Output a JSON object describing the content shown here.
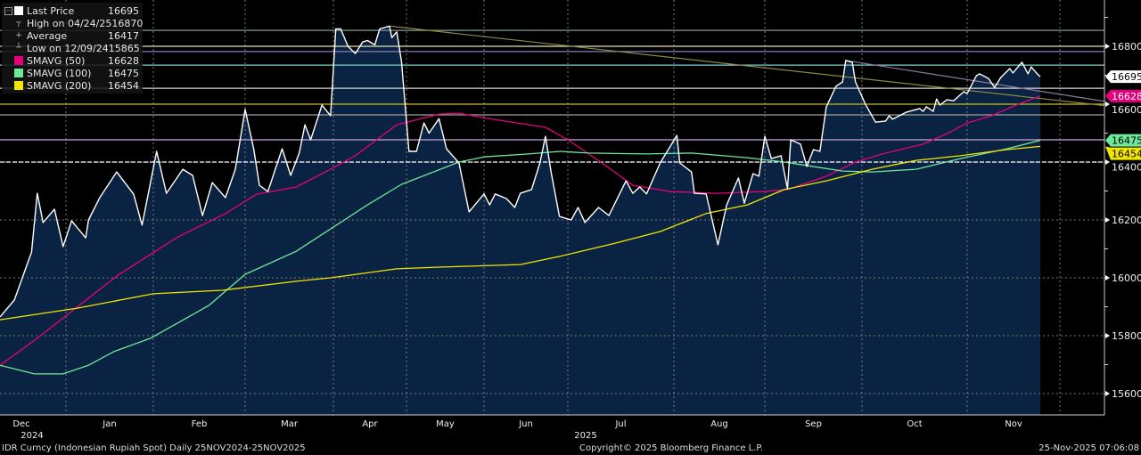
{
  "footer": {
    "security": "IDR Curncy (Indonesian Rupiah Spot) Daily 25NOV2024-25NOV2025",
    "copyright": "Copyright© 2025 Bloomberg Finance L.P.",
    "timestamp": "25-Nov-2025 07:06:08"
  },
  "legend": [
    {
      "name": "Last Price",
      "value": "16695",
      "color": "#ffffff",
      "marker": "square"
    },
    {
      "name": "High on 04/24/25",
      "value": "16870",
      "color": "#aaaaaa",
      "marker": "high-tick"
    },
    {
      "name": "Average",
      "value": "16417",
      "color": "#aaaaaa",
      "marker": "cross"
    },
    {
      "name": "Low on 12/09/24",
      "value": "15865",
      "color": "#aaaaaa",
      "marker": "low-tick"
    },
    {
      "name": "SMAVG (50)",
      "value": "16628",
      "color": "#e6007e",
      "marker": "square"
    },
    {
      "name": "SMAVG (100)",
      "value": "16475",
      "color": "#6ee89a",
      "marker": "square"
    },
    {
      "name": "SMAVG (200)",
      "value": "16454",
      "color": "#f2e600",
      "marker": "square"
    }
  ],
  "chart_data": {
    "type": "area",
    "title": "",
    "xlabel": "",
    "ylabel": "",
    "ylim": [
      15540,
      16960
    ],
    "y_axis_side": "right",
    "y_ticks": [
      15600,
      15800,
      16000,
      16200,
      16400,
      16600,
      16800
    ],
    "x_ticks": [
      {
        "label": "Dec",
        "date": "2024-12-01"
      },
      {
        "label": "Jan",
        "date": "2025-01-01"
      },
      {
        "label": "Feb",
        "date": "2025-02-01"
      },
      {
        "label": "Mar",
        "date": "2025-03-01"
      },
      {
        "label": "Apr",
        "date": "2025-04-01"
      },
      {
        "label": "May",
        "date": "2025-05-01"
      },
      {
        "label": "Jun",
        "date": "2025-06-01"
      },
      {
        "label": "Jul",
        "date": "2025-07-01"
      },
      {
        "label": "Aug",
        "date": "2025-08-01"
      },
      {
        "label": "Sep",
        "date": "2025-09-01"
      },
      {
        "label": "Oct",
        "date": "2025-10-01"
      },
      {
        "label": "Nov",
        "date": "2025-11-01"
      }
    ],
    "year_labels": [
      {
        "label": "2024",
        "date": "2024-12-15"
      },
      {
        "label": "2025",
        "date": "2025-06-28"
      }
    ],
    "grid": true,
    "legend_position": "top-left",
    "series": [
      {
        "name": "Last Price",
        "color": "#ffffff",
        "fill": "#0b2342",
        "points": [
          [
            "2024-12-09",
            15865
          ],
          [
            "2024-12-14",
            15923
          ],
          [
            "2024-12-17",
            16006
          ],
          [
            "2024-12-20",
            16089
          ],
          [
            "2024-12-22",
            16292
          ],
          [
            "2024-12-24",
            16191
          ],
          [
            "2024-12-28",
            16237
          ],
          [
            "2024-12-31",
            16108
          ],
          [
            "2025-01-03",
            16197
          ],
          [
            "2025-01-08",
            16138
          ],
          [
            "2025-01-09",
            16200
          ],
          [
            "2025-01-13",
            16277
          ],
          [
            "2025-01-19",
            16366
          ],
          [
            "2025-01-25",
            16289
          ],
          [
            "2025-01-28",
            16182
          ],
          [
            "2025-02-02",
            16437
          ],
          [
            "2025-02-05",
            16292
          ],
          [
            "2025-02-10",
            16375
          ],
          [
            "2025-02-13",
            16354
          ],
          [
            "2025-02-16",
            16215
          ],
          [
            "2025-02-19",
            16329
          ],
          [
            "2025-02-23",
            16277
          ],
          [
            "2025-02-26",
            16375
          ],
          [
            "2025-03-01",
            16582
          ],
          [
            "2025-03-04",
            16446
          ],
          [
            "2025-03-06",
            16320
          ],
          [
            "2025-03-09",
            16298
          ],
          [
            "2025-03-14",
            16446
          ],
          [
            "2025-03-17",
            16354
          ],
          [
            "2025-03-20",
            16431
          ],
          [
            "2025-03-22",
            16529
          ],
          [
            "2025-03-24",
            16477
          ],
          [
            "2025-03-28",
            16597
          ],
          [
            "2025-03-31",
            16560
          ],
          [
            "2025-04-02",
            16860
          ],
          [
            "2025-04-04",
            16860
          ],
          [
            "2025-04-07",
            16800
          ],
          [
            "2025-04-10",
            16775
          ],
          [
            "2025-04-13",
            16815
          ],
          [
            "2025-04-15",
            16820
          ],
          [
            "2025-04-18",
            16805
          ],
          [
            "2025-04-20",
            16860
          ],
          [
            "2025-04-24",
            16870
          ],
          [
            "2025-04-25",
            16830
          ],
          [
            "2025-04-27",
            16850
          ],
          [
            "2025-04-29",
            16745
          ],
          [
            "2025-05-02",
            16437
          ],
          [
            "2025-05-05",
            16437
          ],
          [
            "2025-05-08",
            16535
          ],
          [
            "2025-05-10",
            16500
          ],
          [
            "2025-05-14",
            16550
          ],
          [
            "2025-05-17",
            16446
          ],
          [
            "2025-05-22",
            16397
          ],
          [
            "2025-05-26",
            16228
          ],
          [
            "2025-06-01",
            16290
          ],
          [
            "2025-06-03",
            16252
          ],
          [
            "2025-06-05",
            16290
          ],
          [
            "2025-06-09",
            16274
          ],
          [
            "2025-06-12",
            16243
          ],
          [
            "2025-06-14",
            16292
          ],
          [
            "2025-06-18",
            16305
          ],
          [
            "2025-06-21",
            16397
          ],
          [
            "2025-06-23",
            16489
          ],
          [
            "2025-06-25",
            16366
          ],
          [
            "2025-06-28",
            16212
          ],
          [
            "2025-07-02",
            16200
          ],
          [
            "2025-07-04",
            16243
          ],
          [
            "2025-07-06",
            16191
          ],
          [
            "2025-07-10",
            16243
          ],
          [
            "2025-07-13",
            16215
          ],
          [
            "2025-07-18",
            16335
          ],
          [
            "2025-07-20",
            16292
          ],
          [
            "2025-07-22",
            16314
          ],
          [
            "2025-07-24",
            16290
          ],
          [
            "2025-07-28",
            16397
          ],
          [
            "2025-08-02",
            16492
          ],
          [
            "2025-08-03",
            16397
          ],
          [
            "2025-08-07",
            16366
          ],
          [
            "2025-08-08",
            16292
          ],
          [
            "2025-08-12",
            16290
          ],
          [
            "2025-08-16",
            16114
          ],
          [
            "2025-08-19",
            16252
          ],
          [
            "2025-08-23",
            16345
          ],
          [
            "2025-08-25",
            16258
          ],
          [
            "2025-08-28",
            16360
          ],
          [
            "2025-08-30",
            16351
          ],
          [
            "2025-09-01",
            16489
          ],
          [
            "2025-09-03",
            16412
          ],
          [
            "2025-09-06",
            16422
          ],
          [
            "2025-09-08",
            16308
          ],
          [
            "2025-09-09",
            16477
          ],
          [
            "2025-09-12",
            16462
          ],
          [
            "2025-09-14",
            16385
          ],
          [
            "2025-09-16",
            16443
          ],
          [
            "2025-09-18",
            16437
          ],
          [
            "2025-09-20",
            16591
          ],
          [
            "2025-09-23",
            16662
          ],
          [
            "2025-09-25",
            16677
          ],
          [
            "2025-09-26",
            16751
          ],
          [
            "2025-09-28",
            16745
          ],
          [
            "2025-09-29",
            16677
          ],
          [
            "2025-10-02",
            16600
          ],
          [
            "2025-10-05",
            16538
          ],
          [
            "2025-10-08",
            16542
          ],
          [
            "2025-10-09",
            16560
          ],
          [
            "2025-10-10",
            16548
          ],
          [
            "2025-10-14",
            16572
          ],
          [
            "2025-10-18",
            16585
          ],
          [
            "2025-10-19",
            16575
          ],
          [
            "2025-10-20",
            16591
          ],
          [
            "2025-10-22",
            16575
          ],
          [
            "2025-10-23",
            16618
          ],
          [
            "2025-10-24",
            16597
          ],
          [
            "2025-10-26",
            16615
          ],
          [
            "2025-10-28",
            16612
          ],
          [
            "2025-10-31",
            16643
          ],
          [
            "2025-11-01",
            16637
          ],
          [
            "2025-11-04",
            16698
          ],
          [
            "2025-11-05",
            16705
          ],
          [
            "2025-11-08",
            16689
          ],
          [
            "2025-11-10",
            16658
          ],
          [
            "2025-11-12",
            16692
          ],
          [
            "2025-11-15",
            16723
          ],
          [
            "2025-11-16",
            16708
          ],
          [
            "2025-11-19",
            16745
          ],
          [
            "2025-11-21",
            16705
          ],
          [
            "2025-11-22",
            16729
          ],
          [
            "2025-11-24",
            16705
          ],
          [
            "2025-11-25",
            16695
          ]
        ]
      },
      {
        "name": "SMAVG (50)",
        "color": "#e6007e",
        "points": [
          [
            "2024-12-09",
            15698
          ],
          [
            "2024-12-22",
            15791
          ],
          [
            "2025-01-19",
            16006
          ],
          [
            "2025-02-08",
            16138
          ],
          [
            "2025-02-23",
            16222
          ],
          [
            "2025-03-05",
            16289
          ],
          [
            "2025-03-19",
            16314
          ],
          [
            "2025-03-31",
            16375
          ],
          [
            "2025-04-10",
            16422
          ],
          [
            "2025-04-27",
            16529
          ],
          [
            "2025-05-14",
            16566
          ],
          [
            "2025-05-22",
            16569
          ],
          [
            "2025-06-02",
            16551
          ],
          [
            "2025-06-23",
            16520
          ],
          [
            "2025-07-01",
            16477
          ],
          [
            "2025-07-11",
            16397
          ],
          [
            "2025-07-20",
            16320
          ],
          [
            "2025-07-31",
            16298
          ],
          [
            "2025-08-16",
            16292
          ],
          [
            "2025-08-31",
            16298
          ],
          [
            "2025-09-08",
            16305
          ],
          [
            "2025-09-20",
            16351
          ],
          [
            "2025-09-29",
            16400
          ],
          [
            "2025-10-07",
            16428
          ],
          [
            "2025-10-19",
            16462
          ],
          [
            "2025-10-26",
            16498
          ],
          [
            "2025-11-01",
            16535
          ],
          [
            "2025-11-09",
            16560
          ],
          [
            "2025-11-17",
            16597
          ],
          [
            "2025-11-25",
            16628
          ]
        ]
      },
      {
        "name": "SMAVG (100)",
        "color": "#6ee89a",
        "points": [
          [
            "2024-12-09",
            15698
          ],
          [
            "2024-12-21",
            15668
          ],
          [
            "2024-12-31",
            15668
          ],
          [
            "2025-01-09",
            15698
          ],
          [
            "2025-01-18",
            15745
          ],
          [
            "2025-01-31",
            15791
          ],
          [
            "2025-02-18",
            15905
          ],
          [
            "2025-03-01",
            16012
          ],
          [
            "2025-03-19",
            16092
          ],
          [
            "2025-03-31",
            16169
          ],
          [
            "2025-04-15",
            16252
          ],
          [
            "2025-04-29",
            16323
          ],
          [
            "2025-05-22",
            16400
          ],
          [
            "2025-06-01",
            16418
          ],
          [
            "2025-06-17",
            16428
          ],
          [
            "2025-06-28",
            16437
          ],
          [
            "2025-07-07",
            16431
          ],
          [
            "2025-07-24",
            16428
          ],
          [
            "2025-08-07",
            16431
          ],
          [
            "2025-08-26",
            16415
          ],
          [
            "2025-09-07",
            16400
          ],
          [
            "2025-09-25",
            16369
          ],
          [
            "2025-10-04",
            16366
          ],
          [
            "2025-10-17",
            16375
          ],
          [
            "2025-10-30",
            16412
          ],
          [
            "2025-11-14",
            16446
          ],
          [
            "2025-11-25",
            16475
          ]
        ]
      },
      {
        "name": "SMAVG (200)",
        "color": "#f2e600",
        "points": [
          [
            "2024-12-09",
            15855
          ],
          [
            "2025-01-05",
            15895
          ],
          [
            "2025-02-01",
            15945
          ],
          [
            "2025-02-22",
            15957
          ],
          [
            "2025-03-19",
            15988
          ],
          [
            "2025-03-31",
            16000
          ],
          [
            "2025-04-27",
            16031
          ],
          [
            "2025-05-14",
            16037
          ],
          [
            "2025-06-14",
            16046
          ],
          [
            "2025-06-28",
            16074
          ],
          [
            "2025-07-15",
            16120
          ],
          [
            "2025-07-28",
            16160
          ],
          [
            "2025-08-12",
            16222
          ],
          [
            "2025-08-26",
            16252
          ],
          [
            "2025-09-07",
            16305
          ],
          [
            "2025-09-20",
            16335
          ],
          [
            "2025-10-04",
            16375
          ],
          [
            "2025-10-17",
            16406
          ],
          [
            "2025-10-30",
            16422
          ],
          [
            "2025-11-14",
            16443
          ],
          [
            "2025-11-25",
            16454
          ]
        ]
      }
    ],
    "reference_lines": [
      {
        "value": 16855,
        "color": "#7f9a8a"
      },
      {
        "value": 16800,
        "color": "#e8e0b0"
      },
      {
        "value": 16782,
        "color": "#8080c0"
      },
      {
        "value": 16735,
        "color": "#7fd0d0"
      },
      {
        "value": 16655,
        "color": "#d8d8d8"
      },
      {
        "value": 16600,
        "color": "#c8c020"
      },
      {
        "value": 16563,
        "color": "#a0a0a0"
      },
      {
        "value": 16477,
        "color": "#c8a8d8"
      },
      {
        "value": 16400,
        "color": "#ffffff",
        "dashed": true
      }
    ],
    "trend_lines": [
      {
        "from": [
          "2025-04-24",
          16870
        ],
        "to_value_at_axis": 16595,
        "color": "#8a8a40"
      },
      {
        "from": [
          "2025-09-26",
          16751
        ],
        "to_value_at_axis": 16610,
        "color": "#8a7a9a"
      }
    ],
    "axis_badges": [
      {
        "value": 16695,
        "bg": "#ffffff",
        "fg": "#000000"
      },
      {
        "value": 16628,
        "bg": "#e6007e",
        "fg": "#ffffff"
      },
      {
        "value": 16454,
        "bg": "#f2e600",
        "fg": "#000000"
      },
      {
        "value": 16475,
        "bg": "#6ee89a",
        "fg": "#000000"
      }
    ]
  }
}
